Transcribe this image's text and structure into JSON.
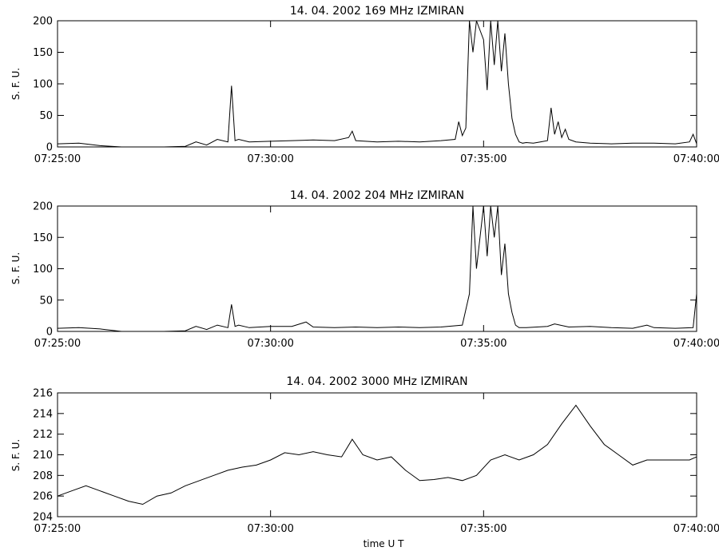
{
  "chart_data": [
    {
      "type": "line",
      "title": "14.  04.  2002    169  MHz    IZMIRAN",
      "ylabel": "S. F. U.",
      "xlabel": "",
      "xlim": [
        "07:25:00",
        "07:40:00"
      ],
      "ylim": [
        0,
        200
      ],
      "x_tick_labels": [
        "07:25:00",
        "07:30:00",
        "07:35:00",
        "07:40:00"
      ],
      "y_tick_labels": [
        "0",
        "50",
        "100",
        "150",
        "200"
      ],
      "grid": false,
      "x": [
        "07:25:00",
        "07:25:30",
        "07:26:00",
        "07:26:30",
        "07:27:00",
        "07:27:30",
        "07:28:00",
        "07:28:15",
        "07:28:30",
        "07:28:45",
        "07:29:00",
        "07:29:05",
        "07:29:10",
        "07:29:15",
        "07:29:30",
        "07:30:00",
        "07:30:30",
        "07:31:00",
        "07:31:30",
        "07:31:50",
        "07:31:55",
        "07:32:00",
        "07:32:30",
        "07:33:00",
        "07:33:30",
        "07:34:00",
        "07:34:20",
        "07:34:25",
        "07:34:30",
        "07:34:35",
        "07:34:40",
        "07:34:45",
        "07:34:50",
        "07:35:00",
        "07:35:05",
        "07:35:10",
        "07:35:15",
        "07:35:20",
        "07:35:25",
        "07:35:30",
        "07:35:35",
        "07:35:40",
        "07:35:45",
        "07:35:50",
        "07:35:55",
        "07:36:00",
        "07:36:10",
        "07:36:20",
        "07:36:30",
        "07:36:35",
        "07:36:40",
        "07:36:45",
        "07:36:50",
        "07:36:55",
        "07:37:00",
        "07:37:10",
        "07:37:30",
        "07:38:00",
        "07:38:30",
        "07:39:00",
        "07:39:30",
        "07:39:50",
        "07:39:55",
        "07:40:00"
      ],
      "series": [
        {
          "values": [
            5,
            6,
            2,
            0,
            0,
            0,
            1,
            8,
            3,
            12,
            8,
            97,
            10,
            12,
            8,
            9,
            10,
            11,
            10,
            15,
            25,
            10,
            8,
            9,
            8,
            10,
            12,
            40,
            18,
            30,
            200,
            150,
            200,
            170,
            90,
            200,
            130,
            200,
            120,
            180,
            100,
            45,
            20,
            8,
            6,
            7,
            6,
            8,
            10,
            62,
            20,
            40,
            15,
            28,
            12,
            8,
            6,
            5,
            6,
            6,
            5,
            8,
            20,
            5
          ]
        }
      ]
    },
    {
      "type": "line",
      "title": "14.  04.  2002    204  MHz    IZMIRAN",
      "ylabel": "S. F. U.",
      "xlabel": "",
      "xlim": [
        "07:25:00",
        "07:40:00"
      ],
      "ylim": [
        0,
        200
      ],
      "x_tick_labels": [
        "07:25:00",
        "07:30:00",
        "07:35:00",
        "07:40:00"
      ],
      "y_tick_labels": [
        "0",
        "50",
        "100",
        "150",
        "200"
      ],
      "grid": false,
      "x": [
        "07:25:00",
        "07:25:30",
        "07:26:00",
        "07:26:30",
        "07:27:00",
        "07:27:30",
        "07:28:00",
        "07:28:15",
        "07:28:30",
        "07:28:45",
        "07:29:00",
        "07:29:05",
        "07:29:10",
        "07:29:15",
        "07:29:30",
        "07:30:00",
        "07:30:30",
        "07:30:50",
        "07:31:00",
        "07:31:30",
        "07:32:00",
        "07:32:30",
        "07:33:00",
        "07:33:30",
        "07:34:00",
        "07:34:30",
        "07:34:40",
        "07:34:45",
        "07:34:50",
        "07:35:00",
        "07:35:05",
        "07:35:10",
        "07:35:15",
        "07:35:20",
        "07:35:25",
        "07:35:30",
        "07:35:35",
        "07:35:40",
        "07:35:45",
        "07:35:50",
        "07:36:00",
        "07:36:30",
        "07:36:40",
        "07:37:00",
        "07:37:30",
        "07:38:00",
        "07:38:30",
        "07:38:50",
        "07:39:00",
        "07:39:30",
        "07:39:55",
        "07:40:00"
      ],
      "series": [
        {
          "values": [
            5,
            6,
            4,
            0,
            -2,
            0,
            1,
            8,
            3,
            10,
            6,
            43,
            8,
            10,
            6,
            8,
            8,
            15,
            7,
            6,
            7,
            6,
            7,
            6,
            7,
            10,
            60,
            200,
            100,
            200,
            120,
            200,
            150,
            200,
            90,
            140,
            60,
            30,
            10,
            6,
            6,
            8,
            12,
            7,
            8,
            6,
            5,
            10,
            6,
            5,
            6,
            60
          ]
        }
      ]
    },
    {
      "type": "line",
      "title": "14.  04.  2002    3000  MHz    IZMIRAN",
      "ylabel": "S. F. U.",
      "xlabel": "time  U T",
      "xlim": [
        "07:25:00",
        "07:40:00"
      ],
      "ylim": [
        204,
        216
      ],
      "x_tick_labels": [
        "07:25:00",
        "07:30:00",
        "07:35:00",
        "07:40:00"
      ],
      "y_tick_labels": [
        "204",
        "206",
        "208",
        "210",
        "212",
        "214",
        "216"
      ],
      "grid": false,
      "x": [
        "07:25:00",
        "07:25:20",
        "07:25:40",
        "07:26:00",
        "07:26:20",
        "07:26:40",
        "07:27:00",
        "07:27:20",
        "07:27:40",
        "07:28:00",
        "07:28:20",
        "07:28:40",
        "07:29:00",
        "07:29:20",
        "07:29:40",
        "07:30:00",
        "07:30:20",
        "07:30:40",
        "07:31:00",
        "07:31:20",
        "07:31:40",
        "07:31:55",
        "07:32:10",
        "07:32:30",
        "07:32:50",
        "07:33:10",
        "07:33:30",
        "07:33:50",
        "07:34:10",
        "07:34:30",
        "07:34:50",
        "07:35:10",
        "07:35:30",
        "07:35:50",
        "07:36:10",
        "07:36:30",
        "07:36:50",
        "07:37:10",
        "07:37:30",
        "07:37:50",
        "07:38:10",
        "07:38:30",
        "07:38:50",
        "07:39:10",
        "07:39:30",
        "07:39:50",
        "07:40:00"
      ],
      "series": [
        {
          "values": [
            206,
            206.5,
            207,
            206.5,
            206,
            205.5,
            205.2,
            206,
            206.3,
            207,
            207.5,
            208,
            208.5,
            208.8,
            209,
            209.5,
            210.2,
            210,
            210.3,
            210,
            209.8,
            211.5,
            210,
            209.5,
            209.8,
            208.5,
            207.5,
            207.6,
            207.8,
            207.5,
            208,
            209.5,
            210,
            209.5,
            210,
            211,
            213,
            214.8,
            212.8,
            211,
            210,
            209,
            209.5,
            209.5,
            209.5,
            209.5,
            209.8
          ]
        }
      ]
    }
  ]
}
